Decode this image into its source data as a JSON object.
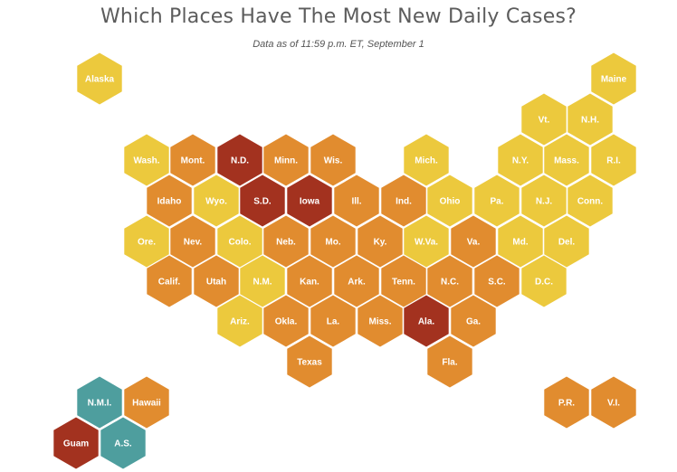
{
  "title": "Which Places Have The Most New Daily Cases?",
  "subtitle": "Data as of 11:59 p.m. ET, September 1",
  "colors": {
    "low": "#ecc93d",
    "medium": "#e18c2f",
    "high": "#a3321f",
    "territory": "#4e9e9e"
  },
  "places": [
    {
      "label": "Alaska",
      "level": "low"
    },
    {
      "label": "Maine",
      "level": "low"
    },
    {
      "label": "Vt.",
      "level": "low"
    },
    {
      "label": "N.H.",
      "level": "low"
    },
    {
      "label": "Wash.",
      "level": "low"
    },
    {
      "label": "Mont.",
      "level": "medium"
    },
    {
      "label": "N.D.",
      "level": "high"
    },
    {
      "label": "Minn.",
      "level": "medium"
    },
    {
      "label": "Wis.",
      "level": "medium"
    },
    {
      "label": "Mich.",
      "level": "low"
    },
    {
      "label": "N.Y.",
      "level": "low"
    },
    {
      "label": "Mass.",
      "level": "low"
    },
    {
      "label": "R.I.",
      "level": "low"
    },
    {
      "label": "Idaho",
      "level": "medium"
    },
    {
      "label": "Wyo.",
      "level": "low"
    },
    {
      "label": "S.D.",
      "level": "high"
    },
    {
      "label": "Iowa",
      "level": "high"
    },
    {
      "label": "Ill.",
      "level": "medium"
    },
    {
      "label": "Ind.",
      "level": "medium"
    },
    {
      "label": "Ohio",
      "level": "low"
    },
    {
      "label": "Pa.",
      "level": "low"
    },
    {
      "label": "N.J.",
      "level": "low"
    },
    {
      "label": "Conn.",
      "level": "low"
    },
    {
      "label": "Ore.",
      "level": "low"
    },
    {
      "label": "Nev.",
      "level": "medium"
    },
    {
      "label": "Colo.",
      "level": "low"
    },
    {
      "label": "Neb.",
      "level": "medium"
    },
    {
      "label": "Mo.",
      "level": "medium"
    },
    {
      "label": "Ky.",
      "level": "medium"
    },
    {
      "label": "W.Va.",
      "level": "low"
    },
    {
      "label": "Va.",
      "level": "medium"
    },
    {
      "label": "Md.",
      "level": "low"
    },
    {
      "label": "Del.",
      "level": "low"
    },
    {
      "label": "Calif.",
      "level": "medium"
    },
    {
      "label": "Utah",
      "level": "medium"
    },
    {
      "label": "N.M.",
      "level": "low"
    },
    {
      "label": "Kan.",
      "level": "medium"
    },
    {
      "label": "Ark.",
      "level": "medium"
    },
    {
      "label": "Tenn.",
      "level": "medium"
    },
    {
      "label": "N.C.",
      "level": "medium"
    },
    {
      "label": "S.C.",
      "level": "medium"
    },
    {
      "label": "D.C.",
      "level": "low"
    },
    {
      "label": "Ariz.",
      "level": "low"
    },
    {
      "label": "Okla.",
      "level": "medium"
    },
    {
      "label": "La.",
      "level": "medium"
    },
    {
      "label": "Miss.",
      "level": "medium"
    },
    {
      "label": "Ala.",
      "level": "high"
    },
    {
      "label": "Ga.",
      "level": "medium"
    },
    {
      "label": "Texas",
      "level": "medium"
    },
    {
      "label": "Fla.",
      "level": "medium"
    },
    {
      "label": "N.M.I.",
      "level": "territory"
    },
    {
      "label": "Hawaii",
      "level": "medium"
    },
    {
      "label": "Guam",
      "level": "high"
    },
    {
      "label": "A.S.",
      "level": "territory"
    },
    {
      "label": "P.R.",
      "level": "medium"
    },
    {
      "label": "V.I.",
      "level": "medium"
    }
  ]
}
